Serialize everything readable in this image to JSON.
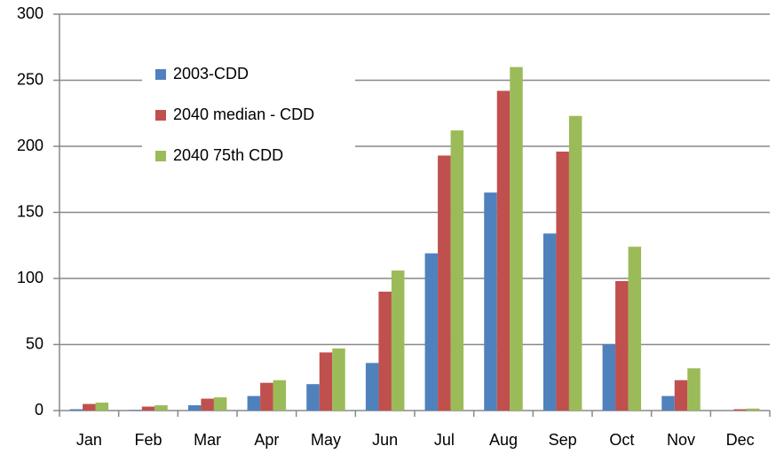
{
  "chart_data": {
    "type": "bar",
    "categories": [
      "Jan",
      "Feb",
      "Mar",
      "Apr",
      "May",
      "Jun",
      "Jul",
      "Aug",
      "Sep",
      "Oct",
      "Nov",
      "Dec"
    ],
    "series": [
      {
        "name": "2003-CDD",
        "color": "#4f81bd",
        "values": [
          1,
          0.5,
          4,
          11,
          20,
          36,
          119,
          165,
          134,
          50,
          11,
          0
        ]
      },
      {
        "name": "2040 median - CDD",
        "color": "#c0504d",
        "values": [
          5,
          3,
          9,
          21,
          44,
          90,
          193,
          242,
          196,
          98,
          23,
          1
        ]
      },
      {
        "name": "2040 75th CDD",
        "color": "#9bbb59",
        "values": [
          6,
          4,
          10,
          23,
          47,
          106,
          212,
          260,
          223,
          124,
          32,
          1.5
        ]
      }
    ],
    "ylim": [
      0,
      300
    ],
    "yticks": [
      0,
      50,
      100,
      150,
      200,
      250,
      300
    ],
    "grid": true,
    "legend_position": "upper left"
  }
}
